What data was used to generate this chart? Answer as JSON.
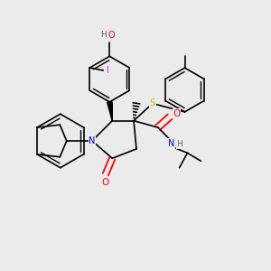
{
  "background_color": "#ebebeb",
  "figsize": [
    3.0,
    3.0
  ],
  "dpi": 100,
  "atom_colors": {
    "O": "#ff0000",
    "N": "#0000cc",
    "S": "#b8b800",
    "I": "#ff00ff",
    "H_gray": "#606060",
    "C": "#000000"
  },
  "lw": 1.2,
  "lw_double_inner": 0.9
}
